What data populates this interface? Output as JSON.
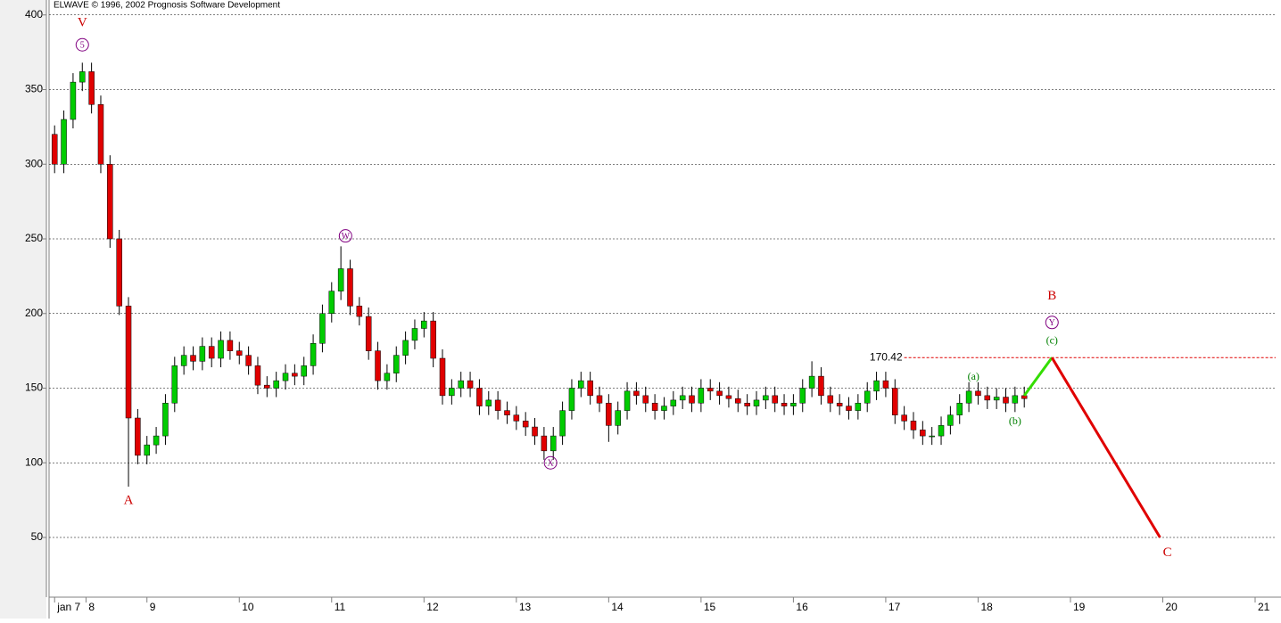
{
  "chart_data": {
    "type": "candlestick",
    "title": "ELWAVE © 1996, 2002 Prognosis Software Development",
    "up_color": "#00cc00",
    "down_color": "#e00000",
    "x": [
      8.0,
      8.1,
      8.2,
      8.3,
      8.4,
      8.5,
      8.6,
      8.7,
      8.8,
      8.9,
      9.0,
      9.1,
      9.2,
      9.3,
      9.4,
      9.5,
      9.6,
      9.7,
      9.8,
      9.9,
      10.0,
      10.1,
      10.2,
      10.3,
      10.4,
      10.5,
      10.6,
      10.7,
      10.8,
      10.9,
      11.0,
      11.1,
      11.2,
      11.3,
      11.4,
      11.5,
      11.6,
      11.7,
      11.8,
      11.9,
      12.0,
      12.1,
      12.2,
      12.3,
      12.4,
      12.5,
      12.6,
      12.7,
      12.8,
      12.9,
      13.0,
      13.1,
      13.2,
      13.3,
      13.4,
      13.5,
      13.6,
      13.7,
      13.8,
      13.9,
      14.0,
      14.1,
      14.2,
      14.3,
      14.4,
      14.5,
      14.6,
      14.7,
      14.8,
      14.9,
      15.0,
      15.1,
      15.2,
      15.3,
      15.4,
      15.5,
      15.6,
      15.7,
      15.8,
      15.9,
      16.0,
      16.1,
      16.2,
      16.3,
      16.4,
      16.5,
      16.6,
      16.7,
      16.8,
      16.9,
      17.0,
      17.1,
      17.2,
      17.3,
      17.4,
      17.5,
      17.6,
      17.7,
      17.8,
      17.9,
      18.0,
      18.1,
      18.2,
      18.3,
      18.4,
      18.5
    ],
    "open": [
      320,
      300,
      330,
      355,
      362,
      340,
      300,
      250,
      205,
      130,
      105,
      112,
      118,
      140,
      165,
      172,
      168,
      178,
      170,
      182,
      175,
      172,
      165,
      152,
      150,
      155,
      160,
      158,
      165,
      180,
      200,
      215,
      230,
      205,
      198,
      175,
      155,
      160,
      172,
      182,
      190,
      195,
      170,
      145,
      150,
      155,
      150,
      138,
      142,
      135,
      132,
      128,
      124,
      118,
      108,
      118,
      135,
      150,
      155,
      145,
      140,
      125,
      135,
      148,
      145,
      140,
      135,
      138,
      142,
      145,
      140,
      150,
      148,
      145,
      143,
      140,
      138,
      142,
      145,
      140,
      138,
      140,
      150,
      158,
      145,
      140,
      138,
      135,
      140,
      148,
      155,
      150,
      132,
      128,
      122,
      118,
      118,
      125,
      132,
      140,
      148,
      145,
      142,
      144,
      140,
      145
    ],
    "high": [
      326,
      336,
      361,
      368,
      368,
      346,
      306,
      256,
      211,
      136,
      118,
      124,
      146,
      171,
      178,
      178,
      184,
      184,
      188,
      188,
      181,
      178,
      171,
      158,
      161,
      166,
      166,
      171,
      186,
      206,
      221,
      245,
      236,
      211,
      204,
      181,
      166,
      178,
      188,
      196,
      201,
      201,
      176,
      156,
      161,
      161,
      156,
      148,
      148,
      141,
      138,
      134,
      130,
      124,
      124,
      141,
      156,
      161,
      161,
      151,
      146,
      141,
      154,
      154,
      151,
      146,
      144,
      148,
      151,
      151,
      156,
      156,
      154,
      151,
      149,
      146,
      148,
      151,
      151,
      146,
      146,
      156,
      168,
      164,
      151,
      146,
      144,
      146,
      154,
      161,
      161,
      156,
      138,
      134,
      128,
      124,
      131,
      138,
      146,
      154,
      154,
      151,
      150,
      150,
      151,
      151
    ],
    "low": [
      294,
      294,
      324,
      349,
      334,
      294,
      244,
      199,
      84,
      99,
      99,
      106,
      112,
      134,
      159,
      162,
      162,
      164,
      164,
      169,
      166,
      159,
      146,
      144,
      144,
      149,
      152,
      152,
      159,
      174,
      194,
      209,
      199,
      192,
      169,
      149,
      149,
      154,
      166,
      176,
      184,
      164,
      139,
      139,
      144,
      144,
      132,
      132,
      129,
      126,
      122,
      118,
      112,
      102,
      102,
      112,
      129,
      144,
      139,
      134,
      114,
      119,
      129,
      139,
      134,
      129,
      129,
      132,
      136,
      134,
      134,
      142,
      139,
      137,
      134,
      132,
      132,
      136,
      134,
      132,
      132,
      134,
      144,
      139,
      134,
      132,
      129,
      129,
      134,
      142,
      144,
      126,
      122,
      116,
      112,
      112,
      112,
      119,
      126,
      134,
      139,
      136,
      136,
      134,
      134,
      137
    ],
    "close": [
      300,
      330,
      355,
      362,
      340,
      300,
      250,
      205,
      130,
      105,
      112,
      118,
      140,
      165,
      172,
      168,
      178,
      170,
      182,
      175,
      172,
      165,
      152,
      150,
      155,
      160,
      158,
      165,
      180,
      200,
      215,
      230,
      205,
      198,
      175,
      155,
      160,
      172,
      182,
      190,
      195,
      170,
      145,
      150,
      155,
      150,
      138,
      142,
      135,
      132,
      128,
      124,
      118,
      108,
      118,
      135,
      150,
      155,
      145,
      140,
      125,
      135,
      148,
      145,
      140,
      135,
      138,
      142,
      145,
      140,
      150,
      148,
      145,
      143,
      140,
      138,
      142,
      145,
      140,
      138,
      140,
      150,
      158,
      145,
      140,
      138,
      135,
      140,
      148,
      155,
      150,
      132,
      128,
      122,
      118,
      118,
      125,
      132,
      140,
      148,
      145,
      142,
      144,
      140,
      145,
      143
    ],
    "xlim": [
      7.94,
      21.28
    ],
    "ylim": [
      10,
      410
    ],
    "xticks": [
      {
        "value": 8.0,
        "label": "jan 7"
      },
      {
        "value": 8.34,
        "label": "8"
      },
      9,
      10,
      11,
      12,
      13,
      14,
      15,
      16,
      17,
      18,
      19,
      20,
      21
    ],
    "yticks": [
      50,
      100,
      150,
      200,
      250,
      300,
      350,
      400
    ],
    "grid": true,
    "level": {
      "value": 170.42,
      "x": 17.2,
      "color": "#e00000"
    },
    "projections": [
      {
        "color": "#33dd00",
        "x": [
          18.5,
          18.8
        ],
        "y": [
          145,
          170.42
        ]
      },
      {
        "color": "#e00000",
        "x": [
          18.8,
          19.97
        ],
        "y": [
          170.42,
          50
        ]
      }
    ],
    "annotations": [
      {
        "text": "V",
        "x": 8.3,
        "y": 395,
        "color": "#cc0000",
        "circled": false
      },
      {
        "text": "5",
        "x": 8.3,
        "y": 380,
        "color": "#800080",
        "circled": true
      },
      {
        "text": "A",
        "x": 8.8,
        "y": 75,
        "color": "#cc0000",
        "circled": false
      },
      {
        "text": "W",
        "x": 11.15,
        "y": 252,
        "color": "#800080",
        "circled": true
      },
      {
        "text": "X",
        "x": 13.37,
        "y": 100,
        "color": "#800080",
        "circled": true
      },
      {
        "text": "(a)",
        "x": 17.95,
        "y": 158,
        "color": "#008000",
        "circled": false
      },
      {
        "text": "(b)",
        "x": 18.4,
        "y": 128,
        "color": "#008000",
        "circled": false
      },
      {
        "text": "(c)",
        "x": 18.8,
        "y": 182,
        "color": "#008000",
        "circled": false
      },
      {
        "text": "Y",
        "x": 18.8,
        "y": 194,
        "color": "#800080",
        "circled": true
      },
      {
        "text": "B",
        "x": 18.8,
        "y": 212,
        "color": "#cc0000",
        "circled": false
      },
      {
        "text": "C",
        "x": 20.05,
        "y": 40,
        "color": "#cc0000",
        "circled": false
      }
    ]
  }
}
